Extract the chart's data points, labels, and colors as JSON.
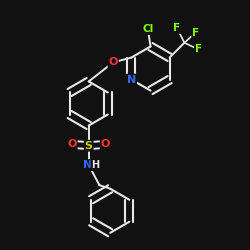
{
  "background_color": "#111111",
  "bond_color": "#e8e8e8",
  "atom_colors": {
    "Cl": "#7fff00",
    "F": "#7fff00",
    "O": "#ff3333",
    "N_pyridine": "#3366ff",
    "N_sulfonamide": "#3366ff",
    "S": "#cccc00",
    "H": "#e8e8e8"
  },
  "figsize": [
    2.5,
    2.5
  ],
  "dpi": 100
}
